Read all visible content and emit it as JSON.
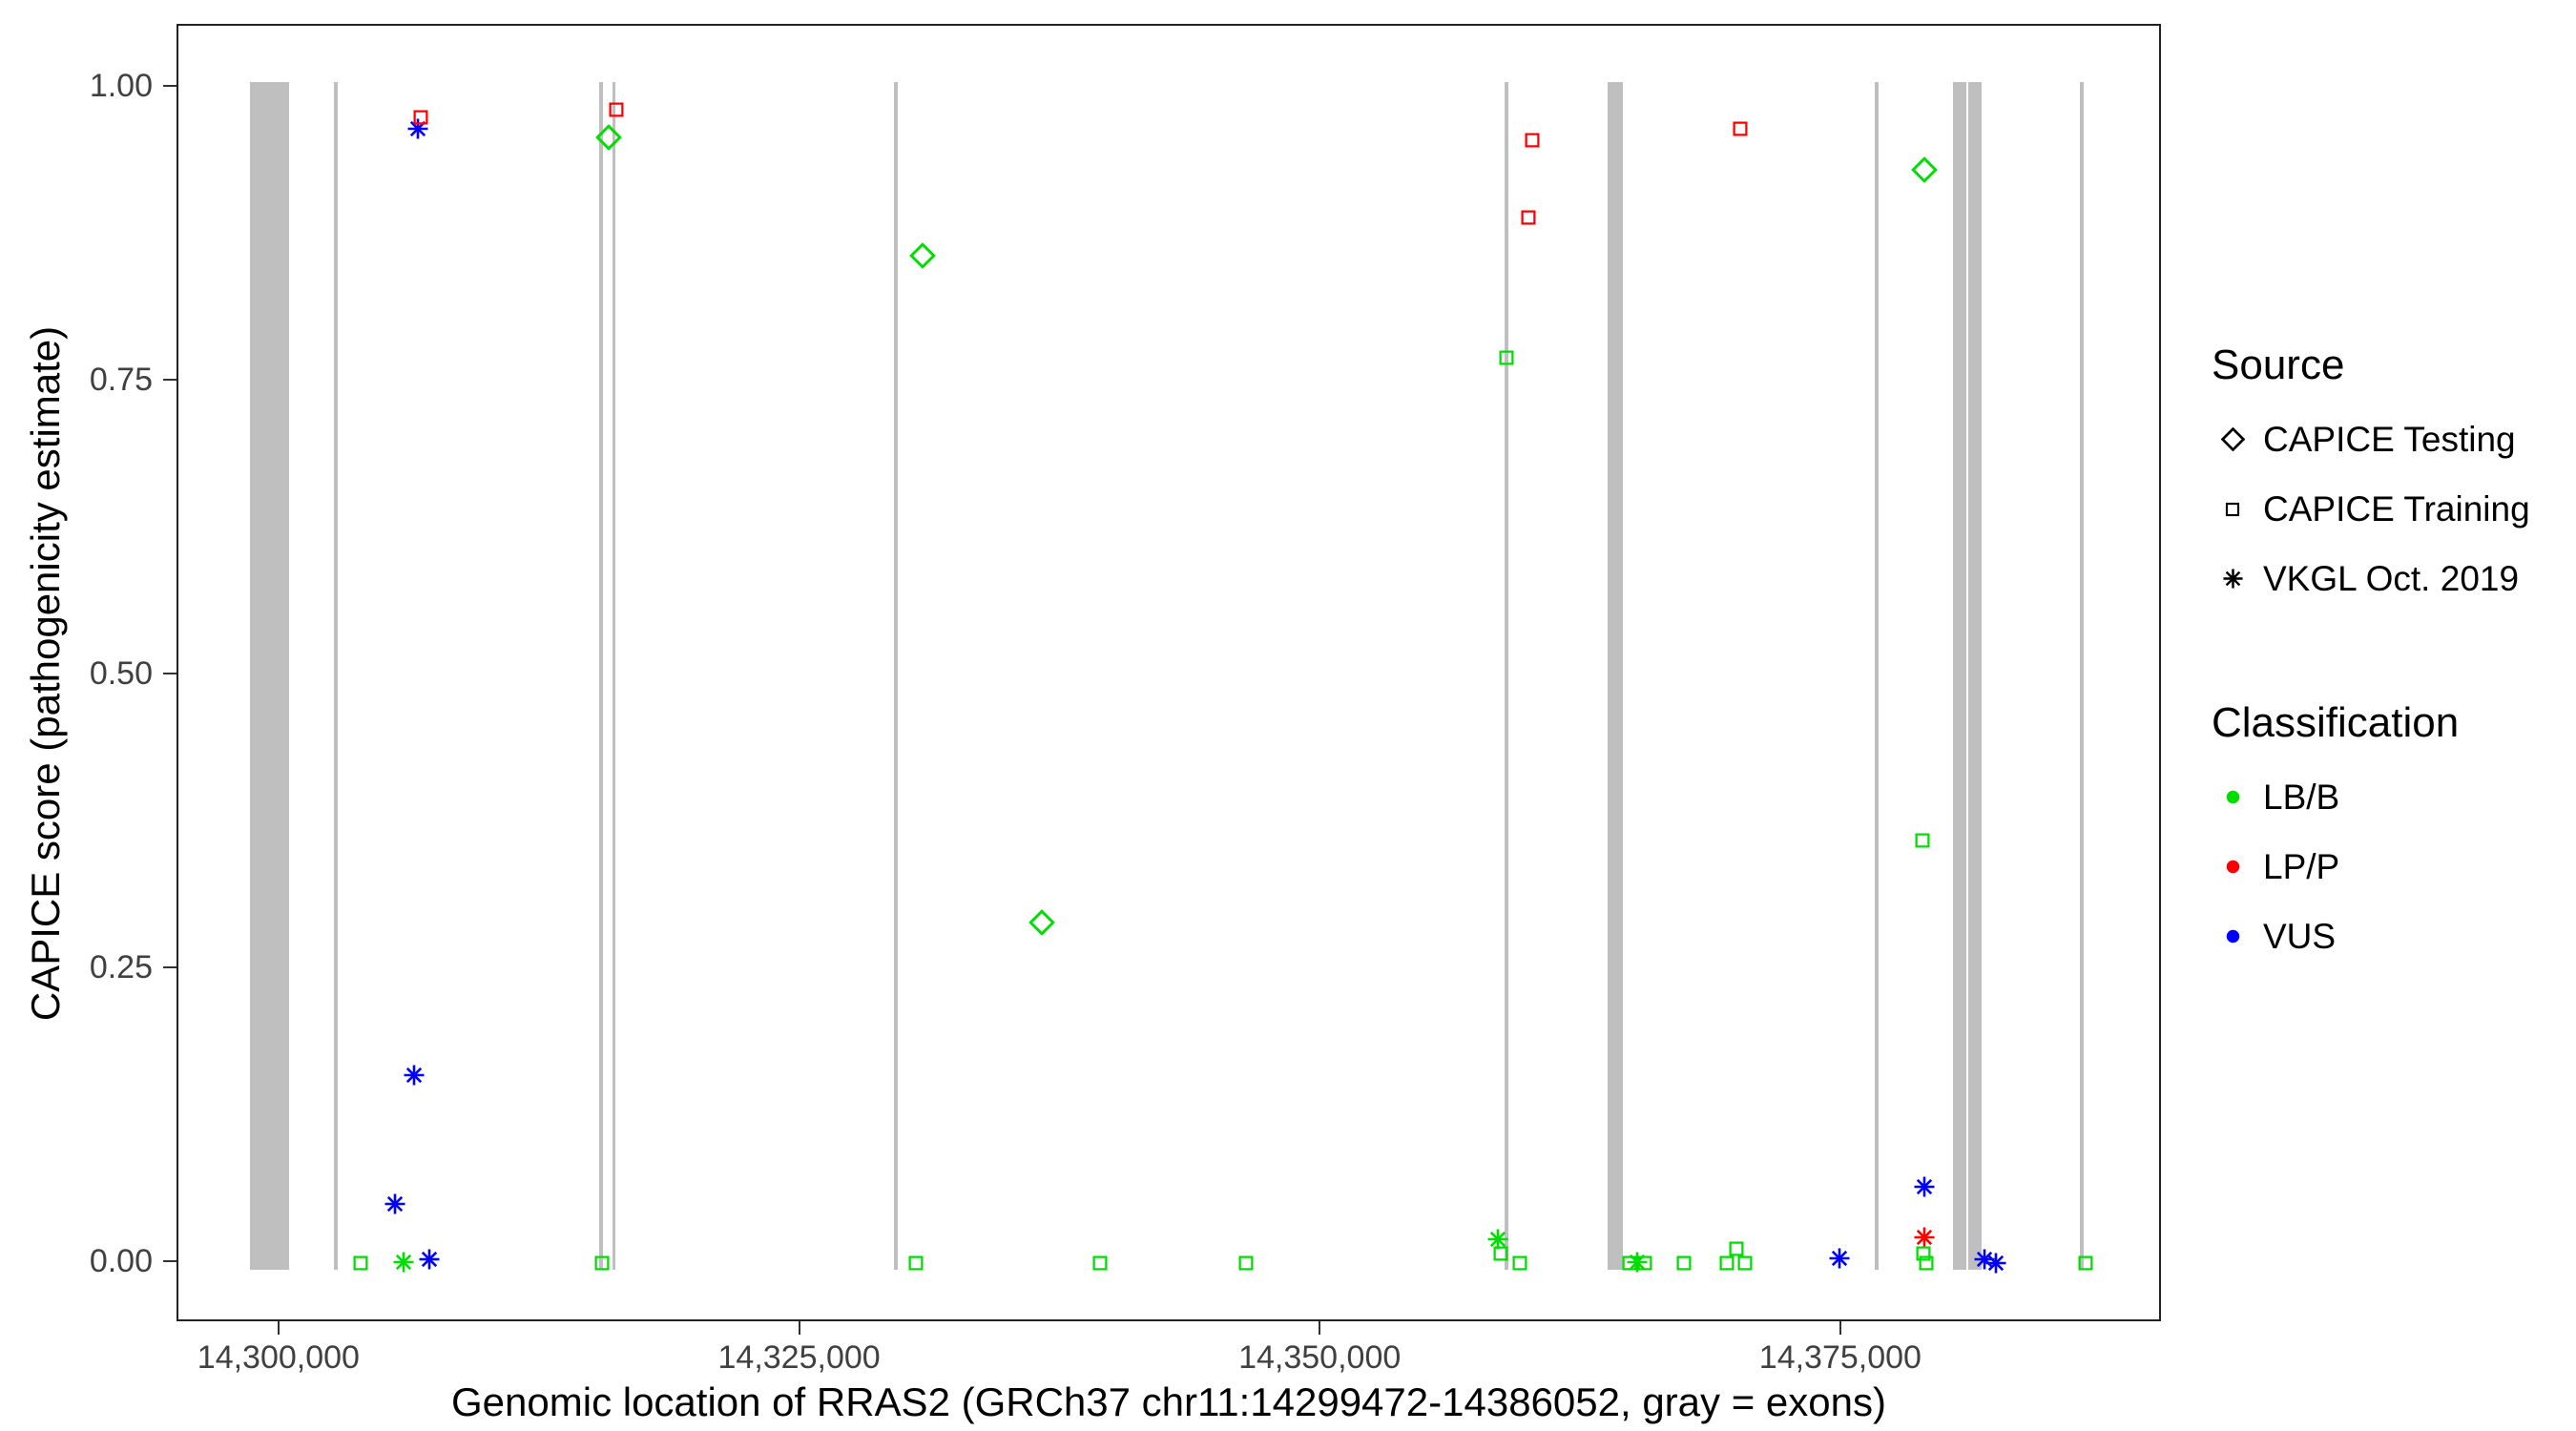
{
  "chart_data": {
    "type": "scatter",
    "xlabel": "Genomic location of RRAS2 (GRCh37 chr11:14299472-14386052, gray = exons)",
    "ylabel": "CAPICE score (pathogenicity estimate)",
    "x_domain": [
      14295100,
      14390400
    ],
    "ylim": [
      0,
      1
    ],
    "grid": "off",
    "x_ticks": [
      {
        "value": 14300000,
        "label": "14,300,000"
      },
      {
        "value": 14325000,
        "label": "14,325,000"
      },
      {
        "value": 14350000,
        "label": "14,350,000"
      },
      {
        "value": 14375000,
        "label": "14,375,000"
      }
    ],
    "y_ticks": [
      {
        "value": 0.0,
        "label": "0.00"
      },
      {
        "value": 0.25,
        "label": "0.25"
      },
      {
        "value": 0.5,
        "label": "0.50"
      },
      {
        "value": 0.75,
        "label": "0.75"
      },
      {
        "value": 1.0,
        "label": "1.00"
      }
    ],
    "exon_color": "#bfbfbf",
    "exons": [
      {
        "start": 14298550,
        "end": 14300430
      },
      {
        "start": 14302560,
        "end": 14302740
      },
      {
        "start": 14315300,
        "end": 14315480
      },
      {
        "start": 14315930,
        "end": 14316110
      },
      {
        "start": 14329480,
        "end": 14329660
      },
      {
        "start": 14358780,
        "end": 14358960
      },
      {
        "start": 14363720,
        "end": 14364470
      },
      {
        "start": 14376560,
        "end": 14376740
      },
      {
        "start": 14380320,
        "end": 14380960
      },
      {
        "start": 14381060,
        "end": 14381720
      },
      {
        "start": 14386420,
        "end": 14386600
      }
    ],
    "colors": {
      "lbb": "#00DD00",
      "lpp": "#FF0000",
      "vus": "#0000FF"
    },
    "shapes": {
      "testing": "diamond",
      "training": "square",
      "vkgl": "asterisk"
    },
    "points": [
      {
        "x": 14303850,
        "y": 0.0,
        "s": "training",
        "c": "lbb"
      },
      {
        "x": 14305500,
        "y": 0.05,
        "s": "vkgl",
        "c": "vus"
      },
      {
        "x": 14305900,
        "y": 0.001,
        "s": "vkgl",
        "c": "lbb"
      },
      {
        "x": 14306400,
        "y": 0.16,
        "s": "vkgl",
        "c": "vus"
      },
      {
        "x": 14306600,
        "y": 0.965,
        "s": "vkgl",
        "c": "vus"
      },
      {
        "x": 14306750,
        "y": 0.975,
        "s": "training",
        "c": "lpp"
      },
      {
        "x": 14307150,
        "y": 0.003,
        "s": "vkgl",
        "c": "vus"
      },
      {
        "x": 14315420,
        "y": 0.0,
        "s": "training",
        "c": "lbb"
      },
      {
        "x": 14315760,
        "y": 0.958,
        "s": "testing",
        "c": "lbb"
      },
      {
        "x": 14316150,
        "y": 0.981,
        "s": "training",
        "c": "lpp"
      },
      {
        "x": 14330500,
        "y": 0.0,
        "s": "training",
        "c": "lbb"
      },
      {
        "x": 14330850,
        "y": 0.857,
        "s": "testing",
        "c": "lbb"
      },
      {
        "x": 14336560,
        "y": 0.29,
        "s": "testing",
        "c": "lbb"
      },
      {
        "x": 14339340,
        "y": 0.0,
        "s": "training",
        "c": "lbb"
      },
      {
        "x": 14346390,
        "y": 0.0,
        "s": "training",
        "c": "lbb"
      },
      {
        "x": 14358450,
        "y": 0.02,
        "s": "vkgl",
        "c": "lbb"
      },
      {
        "x": 14358600,
        "y": 0.008,
        "s": "training",
        "c": "lbb"
      },
      {
        "x": 14358860,
        "y": 0.77,
        "s": "training",
        "c": "lbb"
      },
      {
        "x": 14359500,
        "y": 0.0,
        "s": "training",
        "c": "lbb"
      },
      {
        "x": 14359930,
        "y": 0.89,
        "s": "training",
        "c": "lpp"
      },
      {
        "x": 14360090,
        "y": 0.955,
        "s": "training",
        "c": "lpp"
      },
      {
        "x": 14364780,
        "y": 0.0,
        "s": "training",
        "c": "lbb"
      },
      {
        "x": 14365170,
        "y": 0.001,
        "s": "vkgl",
        "c": "lbb"
      },
      {
        "x": 14365520,
        "y": 0.0,
        "s": "training",
        "c": "lbb"
      },
      {
        "x": 14367390,
        "y": 0.0,
        "s": "training",
        "c": "lbb"
      },
      {
        "x": 14369440,
        "y": 0.0,
        "s": "training",
        "c": "lbb"
      },
      {
        "x": 14369940,
        "y": 0.012,
        "s": "training",
        "c": "lbb"
      },
      {
        "x": 14370100,
        "y": 0.965,
        "s": "training",
        "c": "lpp"
      },
      {
        "x": 14370350,
        "y": 0.0,
        "s": "training",
        "c": "lbb"
      },
      {
        "x": 14374850,
        "y": 0.004,
        "s": "vkgl",
        "c": "vus"
      },
      {
        "x": 14378870,
        "y": 0.36,
        "s": "training",
        "c": "lbb"
      },
      {
        "x": 14378940,
        "y": 0.93,
        "s": "testing",
        "c": "lbb"
      },
      {
        "x": 14378940,
        "y": 0.065,
        "s": "vkgl",
        "c": "vus"
      },
      {
        "x": 14378940,
        "y": 0.022,
        "s": "vkgl",
        "c": "lpp"
      },
      {
        "x": 14378880,
        "y": 0.008,
        "s": "training",
        "c": "lbb"
      },
      {
        "x": 14379020,
        "y": 0.0,
        "s": "training",
        "c": "lbb"
      },
      {
        "x": 14381820,
        "y": 0.003,
        "s": "vkgl",
        "c": "vus"
      },
      {
        "x": 14382400,
        "y": 0.0,
        "s": "vkgl",
        "c": "vus"
      },
      {
        "x": 14386700,
        "y": 0.0,
        "s": "training",
        "c": "lbb"
      }
    ],
    "legend_position": "right"
  },
  "legend": {
    "source": {
      "title": "Source",
      "items": [
        {
          "key": "testing",
          "label": "CAPICE Testing"
        },
        {
          "key": "training",
          "label": "CAPICE Training"
        },
        {
          "key": "vkgl",
          "label": "VKGL Oct. 2019"
        }
      ]
    },
    "classification": {
      "title": "Classification",
      "items": [
        {
          "key": "lbb",
          "label": "LB/B"
        },
        {
          "key": "lpp",
          "label": "LP/P"
        },
        {
          "key": "vus",
          "label": "VUS"
        }
      ]
    }
  }
}
